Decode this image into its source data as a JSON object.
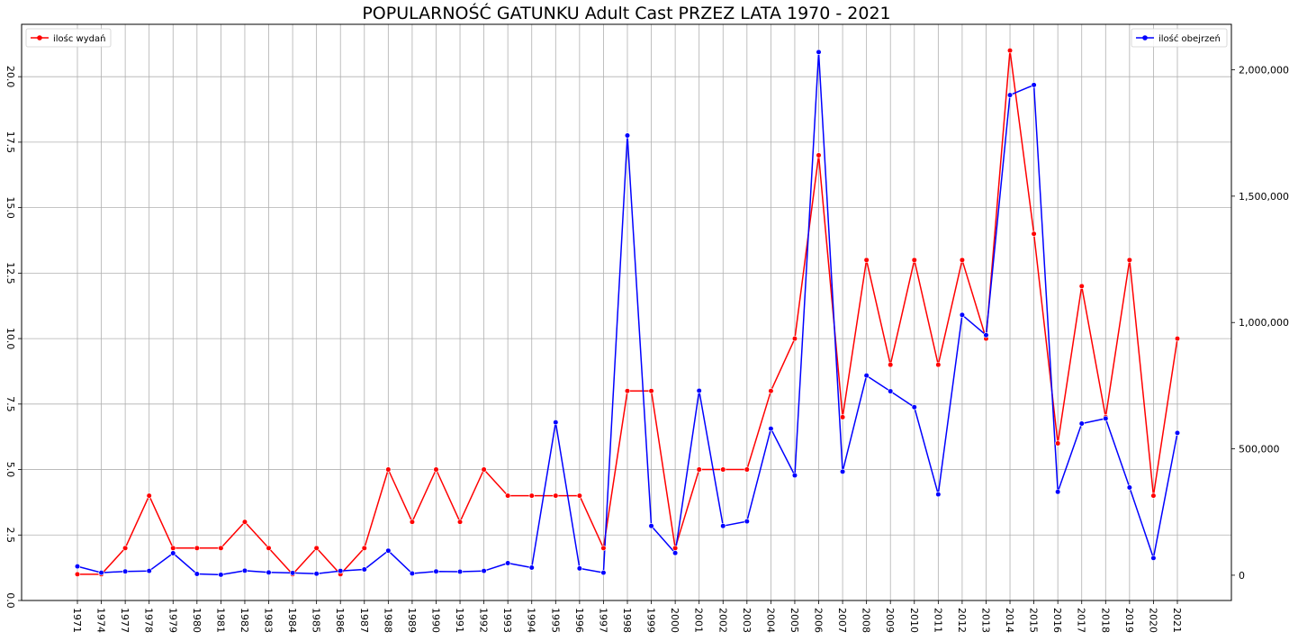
{
  "chart_data": {
    "type": "line",
    "title": "POPULARNOŚĆ GATUNKU Adult Cast PRZEZ LATA 1970 - 2021",
    "xlabel": "",
    "ylabel": "",
    "grid": true,
    "categories": [
      "1971",
      "1974",
      "1977",
      "1978",
      "1979",
      "1980",
      "1981",
      "1982",
      "1983",
      "1984",
      "1985",
      "1986",
      "1987",
      "1988",
      "1989",
      "1990",
      "1991",
      "1992",
      "1993",
      "1994",
      "1995",
      "1996",
      "1997",
      "1998",
      "1999",
      "2000",
      "2001",
      "2002",
      "2003",
      "2004",
      "2005",
      "2006",
      "2007",
      "2008",
      "2009",
      "2010",
      "2011",
      "2012",
      "2013",
      "2014",
      "2015",
      "2016",
      "2017",
      "2018",
      "2019",
      "2020",
      "2021"
    ],
    "left_axis": {
      "ylim": [
        0,
        22
      ],
      "ticks": [
        0.0,
        2.5,
        5.0,
        7.5,
        10.0,
        12.5,
        15.0,
        17.5,
        20.0
      ],
      "tick_labels": [
        "0.0",
        "2.5",
        "5.0",
        "7.5",
        "10.0",
        "12.5",
        "15.0",
        "17.5",
        "20.0"
      ]
    },
    "right_axis": {
      "ylim": [
        -100000,
        2180000
      ],
      "ticks": [
        0,
        500000,
        1000000,
        1500000,
        2000000
      ],
      "tick_labels": [
        "0",
        "500,000",
        "1,000,000",
        "1,500,000",
        "2,000,000"
      ]
    },
    "series": [
      {
        "name": "ilośc wydań",
        "axis": "left",
        "color": "#ff0000",
        "legend_position": "upper-left",
        "values": [
          1,
          1,
          2,
          4,
          2,
          2,
          2,
          3,
          2,
          1,
          2,
          1,
          2,
          5,
          3,
          5,
          3,
          5,
          4,
          4,
          4,
          4,
          2,
          8,
          8,
          2,
          5,
          5,
          5,
          8,
          10,
          17,
          7,
          13,
          9,
          13,
          9,
          13,
          10,
          21,
          14,
          6,
          12,
          7,
          13,
          4,
          10
        ]
      },
      {
        "name": "ilość obejrzeń",
        "axis": "right",
        "color": "#0000ff",
        "legend_position": "upper-right",
        "values": [
          35000,
          10000,
          15000,
          17000,
          87000,
          5000,
          2000,
          18000,
          11000,
          9000,
          6000,
          17000,
          23000,
          97000,
          7000,
          15000,
          14000,
          17000,
          48000,
          30000,
          605000,
          27000,
          10000,
          1740000,
          195000,
          88000,
          730000,
          195000,
          213000,
          580000,
          395000,
          2070000,
          410000,
          790000,
          728000,
          665000,
          320000,
          1030000,
          950000,
          1900000,
          1940000,
          330000,
          600000,
          620000,
          347000,
          68000,
          563000
        ]
      }
    ]
  }
}
